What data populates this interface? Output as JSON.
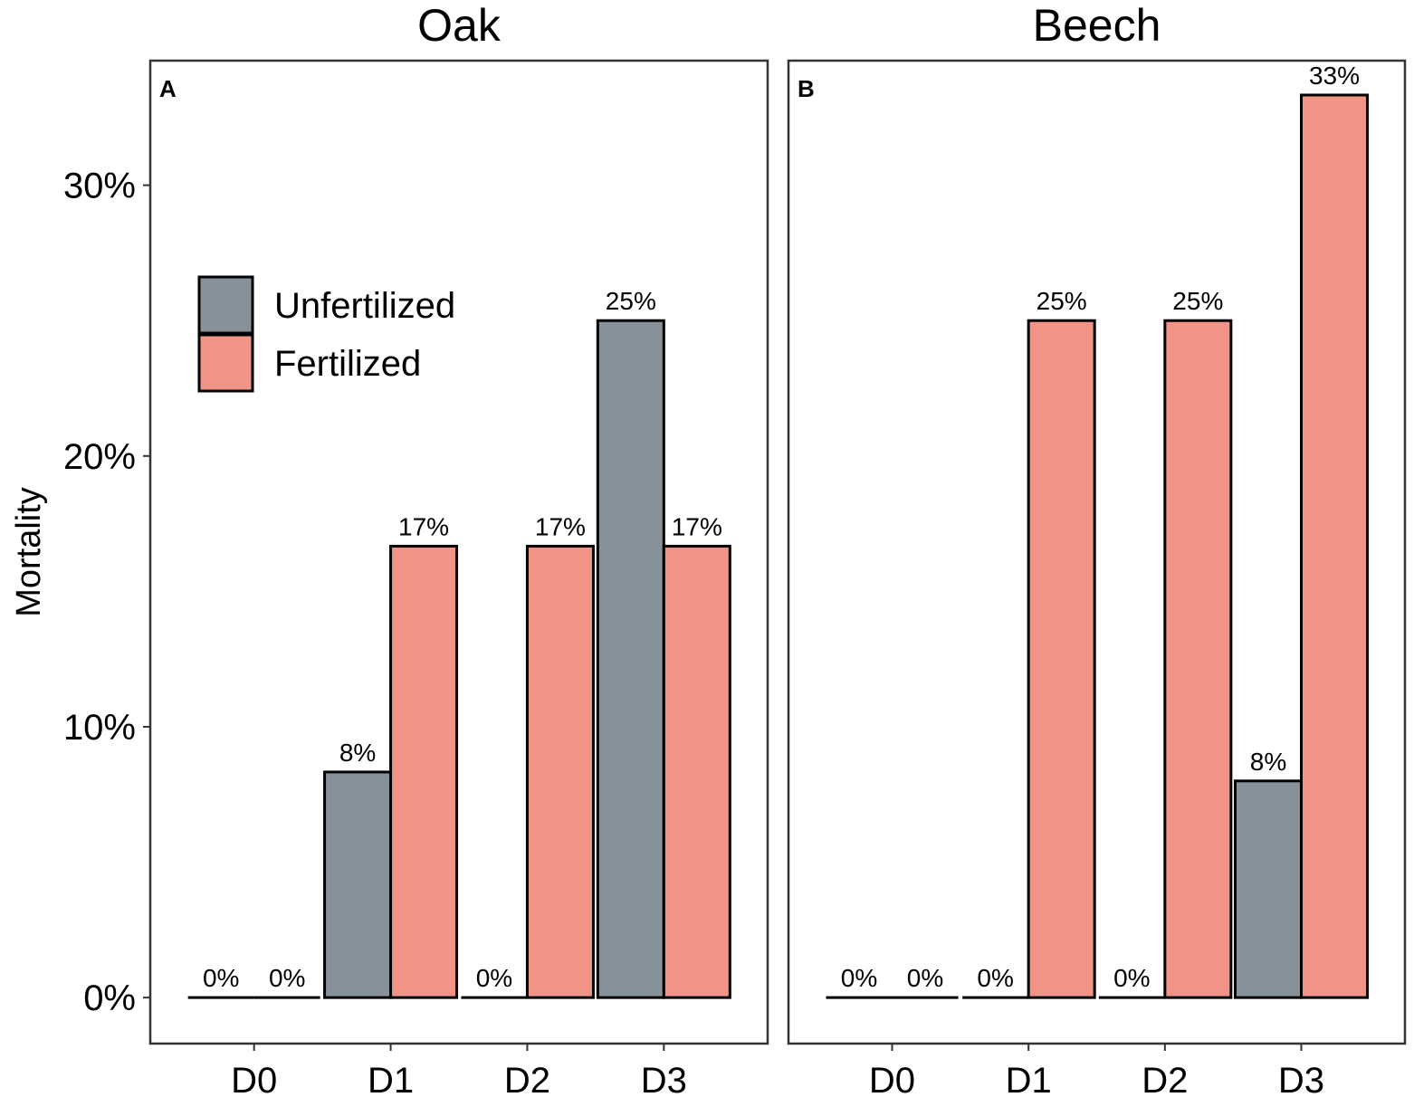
{
  "chart_data": {
    "type": "bar",
    "ylabel": "Mortality",
    "ylim": [
      -1.7,
      34.6
    ],
    "yticks": [
      0,
      10,
      20,
      30
    ],
    "ytick_labels": [
      "0%",
      "10%",
      "20%",
      "30%"
    ],
    "categories": [
      "D0",
      "D1",
      "D2",
      "D3"
    ],
    "colors": {
      "Unfertilized": "#87919a",
      "Fertilized": "#f09488"
    },
    "legend": {
      "placement": "top-left inside panel A",
      "entries": [
        "Unfertilized",
        "Fertilized"
      ]
    },
    "panels": [
      {
        "title": "Oak",
        "letter": "A",
        "series": [
          {
            "name": "Unfertilized",
            "values": [
              0,
              8.33,
              0,
              25
            ],
            "labels": [
              "0%",
              "8%",
              "0%",
              "25%"
            ]
          },
          {
            "name": "Fertilized",
            "values": [
              0,
              16.67,
              16.67,
              16.67
            ],
            "labels": [
              "0%",
              "17%",
              "17%",
              "17%"
            ]
          }
        ]
      },
      {
        "title": "Beech",
        "letter": "B",
        "series": [
          {
            "name": "Unfertilized",
            "values": [
              0,
              0,
              0,
              8
            ],
            "labels": [
              "0%",
              "0%",
              "0%",
              "8%"
            ]
          },
          {
            "name": "Fertilized",
            "values": [
              0,
              25,
              25,
              33.33
            ],
            "labels": [
              "0%",
              "25%",
              "25%",
              "33%"
            ]
          }
        ]
      }
    ]
  }
}
